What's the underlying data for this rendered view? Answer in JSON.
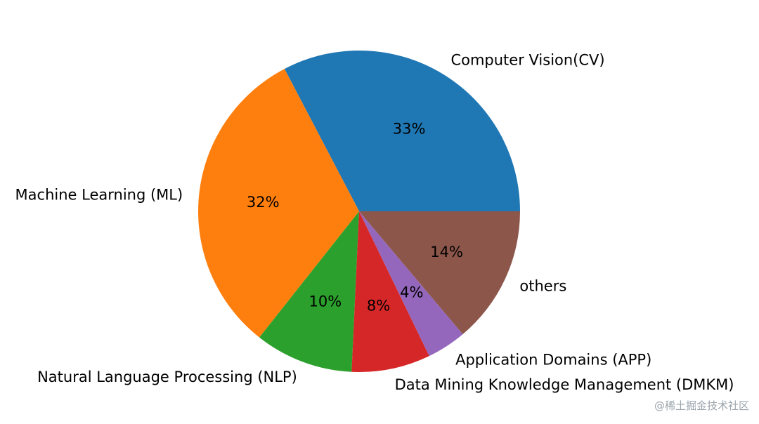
{
  "chart_data": {
    "type": "pie",
    "title": "",
    "start_angle_deg": 0,
    "direction": "counterclockwise",
    "slices": [
      {
        "label": "Computer Vision(CV)",
        "value": 33,
        "pct_text": "33%",
        "color": "#1f77b4"
      },
      {
        "label": "Machine Learning (ML)",
        "value": 32,
        "pct_text": "32%",
        "color": "#ff7f0e"
      },
      {
        "label": "Natural Language Processing (NLP)",
        "value": 10,
        "pct_text": "10%",
        "color": "#2ca02c"
      },
      {
        "label": "Data Mining Knowledge Management (DMKM)",
        "value": 8,
        "pct_text": "8%",
        "color": "#d62728"
      },
      {
        "label": "Application Domains (APP)",
        "value": 4,
        "pct_text": "4%",
        "color": "#9467bd"
      },
      {
        "label": "others",
        "value": 14,
        "pct_text": "14%",
        "color": "#8c564b"
      }
    ]
  },
  "watermark": "@稀土掘金技术社区"
}
